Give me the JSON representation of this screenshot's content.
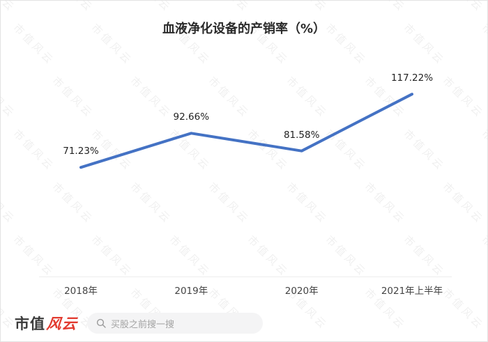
{
  "chart_data": {
    "type": "line",
    "title": "血液净化设备的产销率（%）",
    "categories": [
      "2018年",
      "2019年",
      "2020年",
      "2021年上半年"
    ],
    "values": [
      71.23,
      92.66,
      81.58,
      117.22
    ],
    "labels": [
      "71.23%",
      "92.66%",
      "81.58%",
      "117.22%"
    ],
    "series_color": "#4472c4",
    "ylim": [
      60,
      130
    ],
    "xlabel": "",
    "ylabel": "",
    "grid": false,
    "legend": "none"
  },
  "watermark": {
    "text": "市值风云"
  },
  "footer": {
    "logo_part1": "市值",
    "logo_part2": "风云",
    "search_placeholder": "买股之前搜一搜"
  }
}
